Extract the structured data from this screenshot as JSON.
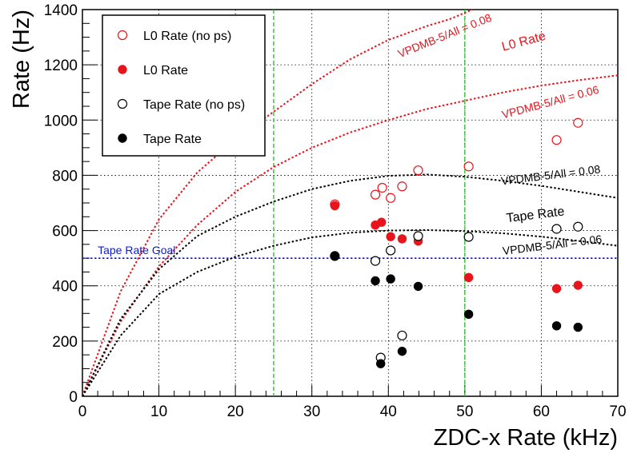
{
  "chart_data": {
    "type": "scatter",
    "xlabel": "ZDC-x Rate (kHz)",
    "ylabel": "Rate (Hz)",
    "xlim": [
      0,
      70
    ],
    "ylim": [
      0,
      1400
    ],
    "x_ticks": [
      0,
      10,
      20,
      30,
      40,
      50,
      60,
      70
    ],
    "y_ticks": [
      0,
      200,
      400,
      600,
      800,
      1000,
      1200,
      1400
    ],
    "grid": true,
    "legend_position": "top-left",
    "series": [
      {
        "name": "L0 Rate (no ps)",
        "marker": "open-circle",
        "color": "#e8141c",
        "points": [
          [
            33,
            695
          ],
          [
            38.3,
            730
          ],
          [
            39.2,
            755
          ],
          [
            40.3,
            718
          ],
          [
            41.8,
            760
          ],
          [
            43.9,
            818
          ],
          [
            50.5,
            832
          ],
          [
            62,
            928
          ],
          [
            64.8,
            990
          ]
        ]
      },
      {
        "name": "L0 Rate",
        "marker": "filled-circle",
        "color": "#e8141c",
        "points": [
          [
            33,
            690
          ],
          [
            38.3,
            620
          ],
          [
            39.1,
            630
          ],
          [
            40.3,
            578
          ],
          [
            41.8,
            570
          ],
          [
            43.9,
            562
          ],
          [
            50.5,
            430
          ],
          [
            62,
            390
          ],
          [
            64.8,
            402
          ]
        ]
      },
      {
        "name": "Tape Rate (no ps)",
        "marker": "open-circle",
        "color": "#000000",
        "points": [
          [
            33,
            508
          ],
          [
            38.3,
            490
          ],
          [
            39,
            140
          ],
          [
            40.3,
            528
          ],
          [
            41.8,
            220
          ],
          [
            43.9,
            580
          ],
          [
            50.5,
            577
          ],
          [
            62,
            606
          ],
          [
            64.8,
            614
          ]
        ]
      },
      {
        "name": "Tape Rate",
        "marker": "filled-circle",
        "color": "#000000",
        "points": [
          [
            33,
            507
          ],
          [
            38.3,
            418
          ],
          [
            39,
            118
          ],
          [
            40.3,
            425
          ],
          [
            41.8,
            163
          ],
          [
            43.9,
            398
          ],
          [
            50.5,
            297
          ],
          [
            62,
            255
          ],
          [
            64.8,
            250
          ]
        ]
      }
    ],
    "curves": [
      {
        "label": "VPDMB-5/All = 0.08",
        "label_group": "L0 Rate",
        "color": "#e8141c",
        "style": "dotted",
        "points": [
          [
            0,
            0
          ],
          [
            5,
            380
          ],
          [
            10,
            640
          ],
          [
            15,
            810
          ],
          [
            20,
            930
          ],
          [
            25,
            1030
          ],
          [
            30,
            1130
          ],
          [
            35,
            1220
          ],
          [
            40,
            1290
          ],
          [
            45,
            1340
          ],
          [
            48,
            1365
          ],
          [
            51,
            1400
          ]
        ]
      },
      {
        "label": "VPDMB-5/All = 0.06",
        "label_group": "L0 Rate",
        "color": "#e8141c",
        "style": "dotted",
        "points": [
          [
            0,
            0
          ],
          [
            5,
            270
          ],
          [
            10,
            470
          ],
          [
            15,
            620
          ],
          [
            20,
            740
          ],
          [
            25,
            830
          ],
          [
            30,
            900
          ],
          [
            35,
            955
          ],
          [
            40,
            1000
          ],
          [
            45,
            1040
          ],
          [
            50,
            1070
          ],
          [
            55,
            1100
          ],
          [
            60,
            1125
          ],
          [
            65,
            1145
          ],
          [
            70,
            1162
          ]
        ]
      },
      {
        "label": "VPDMB-5/All = 0.08",
        "label_group": "Tape Rate",
        "color": "#000000",
        "style": "dotted",
        "points": [
          [
            0,
            0
          ],
          [
            5,
            280
          ],
          [
            10,
            460
          ],
          [
            15,
            580
          ],
          [
            20,
            650
          ],
          [
            25,
            705
          ],
          [
            30,
            750
          ],
          [
            35,
            780
          ],
          [
            40,
            798
          ],
          [
            45,
            803
          ],
          [
            50,
            795
          ],
          [
            55,
            780
          ],
          [
            60,
            762
          ],
          [
            65,
            740
          ],
          [
            70,
            718
          ]
        ]
      },
      {
        "label": "VPDMB-5/All = 0.06",
        "label_group": "Tape Rate",
        "color": "#000000",
        "style": "dotted",
        "points": [
          [
            0,
            0
          ],
          [
            5,
            220
          ],
          [
            10,
            370
          ],
          [
            15,
            450
          ],
          [
            20,
            505
          ],
          [
            25,
            545
          ],
          [
            30,
            575
          ],
          [
            35,
            592
          ],
          [
            40,
            600
          ],
          [
            45,
            602
          ],
          [
            50,
            598
          ],
          [
            55,
            590
          ],
          [
            60,
            578
          ],
          [
            65,
            562
          ],
          [
            70,
            545
          ]
        ]
      }
    ],
    "reference_lines": [
      {
        "axis": "y",
        "value": 500,
        "label": "Tape Rate Goal",
        "color": "#0a18d8",
        "style": "dotted"
      },
      {
        "axis": "x",
        "value": 25,
        "color": "#22bb22",
        "style": "dashed"
      },
      {
        "axis": "x",
        "value": 50,
        "color": "#22bb22",
        "style": "dashed"
      }
    ],
    "annotations": [
      {
        "text": "L0 Rate",
        "color": "#e8141c",
        "x": 55,
        "y": 1250,
        "rotate": -15
      },
      {
        "text": "VPDMB-5/All = 0.08",
        "color": "#e8141c",
        "x": 41.5,
        "y": 1225,
        "rotate": -22
      },
      {
        "text": "VPDMB-5/All = 0.06",
        "color": "#e8141c",
        "x": 55,
        "y": 1005,
        "rotate": -15
      },
      {
        "text": "VPDMB-5/All = 0.08",
        "color": "#000000",
        "x": 54.8,
        "y": 765,
        "rotate": -7
      },
      {
        "text": "Tape Rate",
        "color": "#000000",
        "x": 55.5,
        "y": 630,
        "rotate": -7
      },
      {
        "text": "VPDMB-5/All = 0.06",
        "color": "#000000",
        "x": 55,
        "y": 512,
        "rotate": -7
      },
      {
        "text": "Tape Rate Goal",
        "color": "#0a18d8",
        "x": 2,
        "y": 515,
        "rotate": 0
      }
    ]
  }
}
